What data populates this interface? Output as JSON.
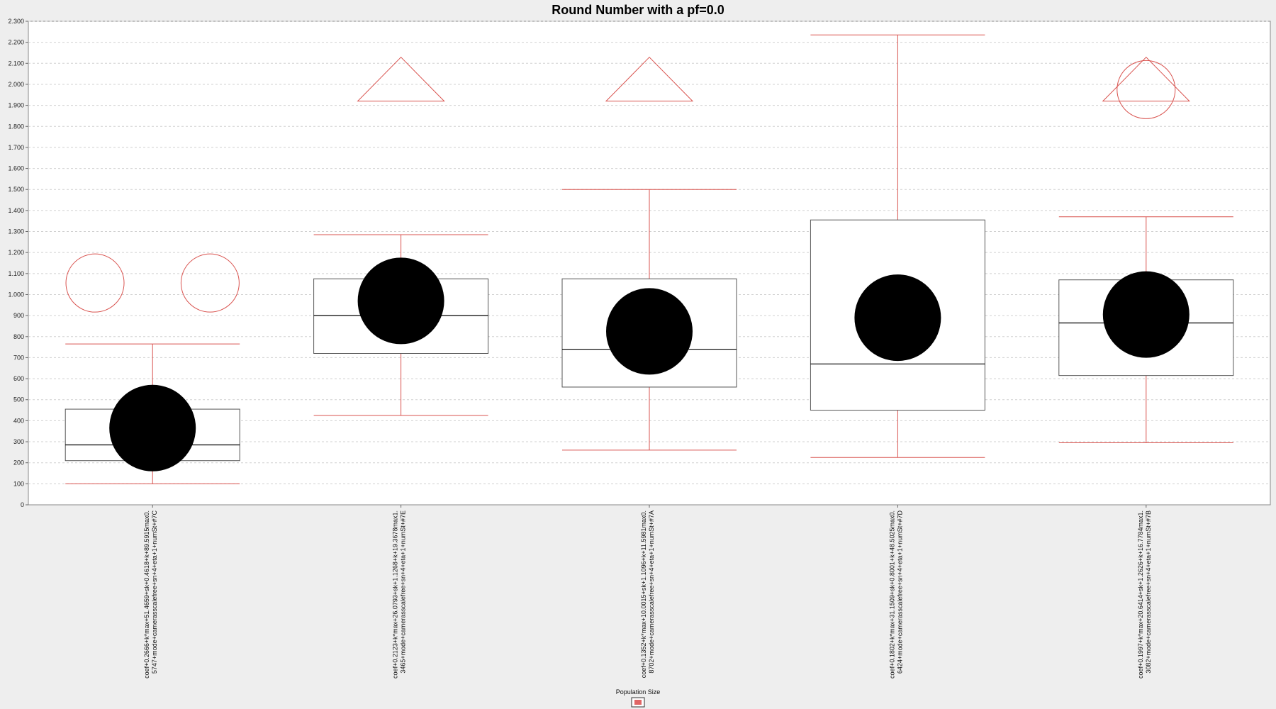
{
  "chart_data": {
    "type": "box",
    "title": "Round Number with a pf=0.0",
    "xlabel": "",
    "ylabel": "",
    "ylim": [
      0,
      2300
    ],
    "ytick_step": 100,
    "grid": true,
    "legend": {
      "placement": "bottom-center",
      "title": "Population Size",
      "swatch_color": "#e06666"
    },
    "colors": {
      "whisker": "#d9534f",
      "box_outline": "#555555",
      "mean": "#000000",
      "outlier": "#d9534f",
      "grid": "#d0d0d0"
    },
    "categories": [
      [
        "coef+0.2666+k*max+51.4659+sk+0.4618+k+89.5915max0.",
        "5747+mode+camerasscalefree+sn+4+eta+1+numSt+#7C"
      ],
      [
        "coef+0.2123+k*max+26.0793+sk+1.1268+k+19.3678max1.",
        "3465+mode+camerasscalefree+sn+4+eta+1+numSt+#7E"
      ],
      [
        "coef+0.1352+k*max+10.0015+sk+1.1096+k+11.5981max0.",
        "8702+mode+camerasscalefree+sn+4+eta+1+numSt+#7A"
      ],
      [
        "coef+0.1802+k*max+31.1509+sk+0.8001+k+48.5025max0.",
        "6424+mode+camerasscalefree+sn+4+eta+1+numSt+#7D"
      ],
      [
        "coef+0.1997+k*max+20.6414+sk+1.2626+k+16.7784max1.",
        "3082+mode+camerasscalefree+sn+4+eta+1+numSt+#7B"
      ]
    ],
    "series": [
      {
        "boxes": [
          {
            "whisker_low": 100,
            "q1": 210,
            "median": 285,
            "q3": 455,
            "whisker_high": 765,
            "mean": 365,
            "outliers": [
              {
                "y": 1055,
                "shape": "circle",
                "offset": -0.5
              },
              {
                "y": 1055,
                "shape": "circle",
                "offset": 0.5
              }
            ]
          },
          {
            "whisker_low": 425,
            "q1": 720,
            "median": 900,
            "q3": 1075,
            "whisker_high": 1285,
            "mean": 970,
            "outliers": [
              {
                "y": 1920,
                "shape": "triangle",
                "offset": 0
              }
            ]
          },
          {
            "whisker_low": 260,
            "q1": 560,
            "median": 740,
            "q3": 1075,
            "whisker_high": 1500,
            "mean": 825,
            "outliers": [
              {
                "y": 1920,
                "shape": "triangle",
                "offset": 0
              }
            ]
          },
          {
            "whisker_low": 225,
            "q1": 450,
            "median": 670,
            "q3": 1355,
            "whisker_high": 2235,
            "mean": 890,
            "outliers": []
          },
          {
            "whisker_low": 295,
            "q1": 615,
            "median": 865,
            "q3": 1070,
            "whisker_high": 1370,
            "mean": 905,
            "outliers": [
              {
                "y": 1920,
                "shape": "triangle",
                "offset": 0
              },
              {
                "y": 1975,
                "shape": "circle",
                "offset": 0
              }
            ]
          }
        ]
      }
    ]
  }
}
